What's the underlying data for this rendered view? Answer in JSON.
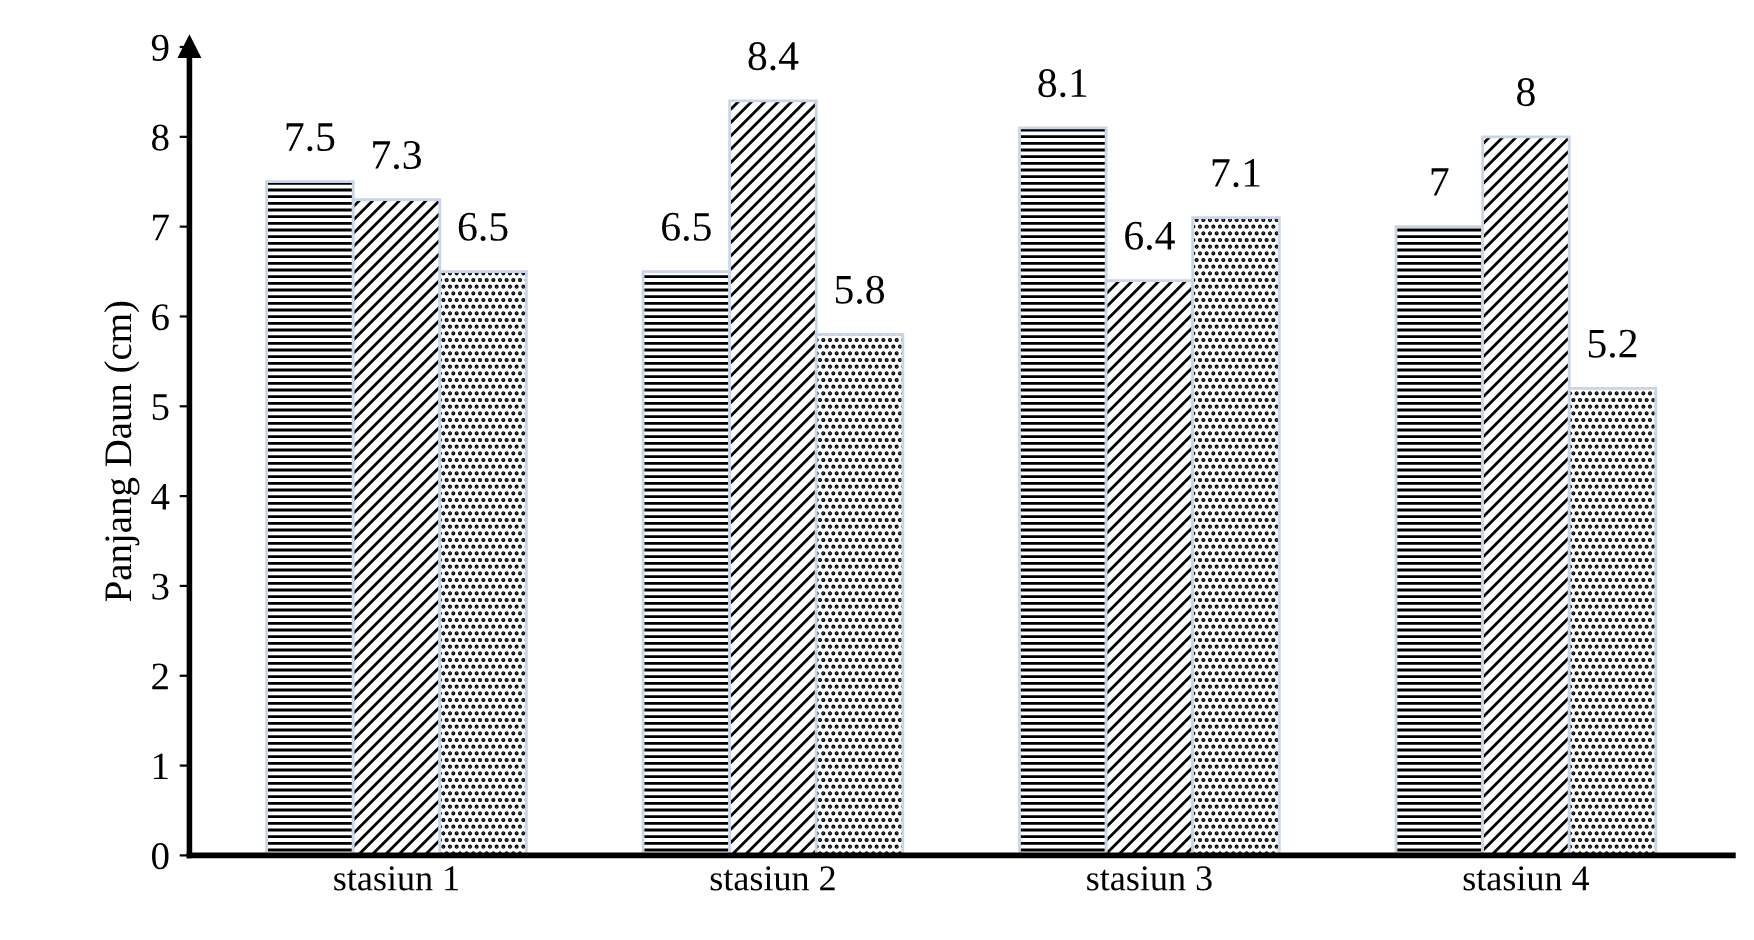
{
  "chart_data": {
    "type": "bar",
    "ylabel": "Panjang Daun (cm)",
    "categories": [
      "stasiun 1",
      "stasiun 2",
      "stasiun 3",
      "stasiun 4"
    ],
    "series": [
      {
        "color": "#c9d4e6",
        "values": [
          7.5,
          6.5,
          8.1,
          7
        ]
      },
      {
        "color": "#c9d4e6",
        "values": [
          7.3,
          8.4,
          6.4,
          8
        ]
      },
      {
        "color": "#c9d4e6",
        "values": [
          6.5,
          5.8,
          7.1,
          5.2
        ]
      }
    ],
    "ylim": [
      0,
      9
    ],
    "yticks": [
      0,
      1,
      2,
      3,
      4,
      5,
      6,
      7,
      8,
      9
    ],
    "data_labels": true,
    "grid": false,
    "legend": false
  }
}
